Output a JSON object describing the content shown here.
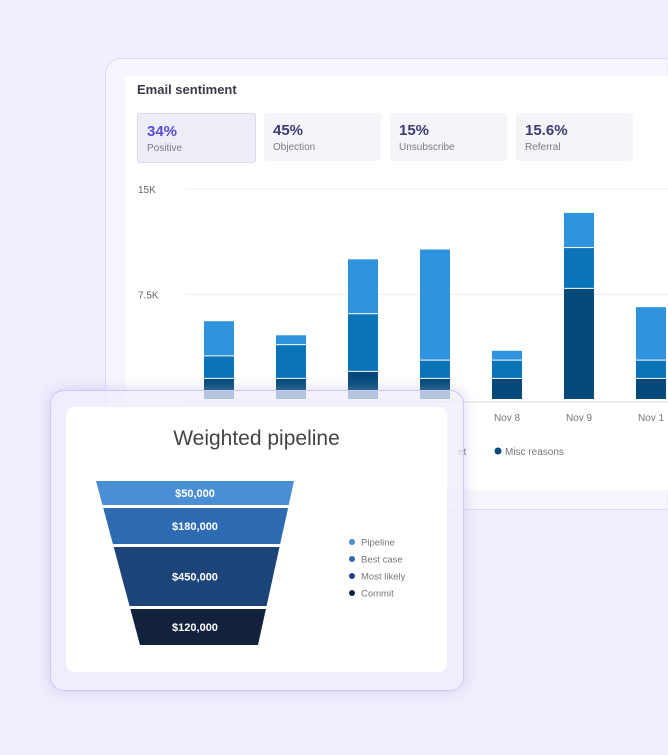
{
  "email_sentiment": {
    "title": "Email sentiment",
    "stats": [
      {
        "value": "34%",
        "label": "Positive",
        "active": true
      },
      {
        "value": "45%",
        "label": "Objection"
      },
      {
        "value": "15%",
        "label": "Unsubscribe"
      },
      {
        "value": "15.6%",
        "label": "Referral"
      }
    ]
  },
  "weighted_pipeline": {
    "title": "Weighted pipeline"
  },
  "chart_data": [
    {
      "type": "bar",
      "stacked": true,
      "yticks": [
        "15K",
        "7.5K"
      ],
      "ylim": [
        0,
        15000
      ],
      "grid": true,
      "categories": [
        "",
        "",
        "",
        "",
        "Nov 8",
        "Nov 9",
        "Nov 1"
      ],
      "series": [
        {
          "name": "Misc reasons",
          "color": "#034a7a",
          "values": [
            1500,
            1500,
            2000,
            1500,
            1500,
            7900,
            1500
          ]
        },
        {
          "name": "",
          "color": "#0a74b8",
          "values": [
            1600,
            2400,
            4100,
            1300,
            1300,
            2900,
            1300
          ]
        },
        {
          "name": "",
          "color": "#2e94dd",
          "values": [
            2500,
            700,
            3900,
            7900,
            700,
            2500,
            3800
          ]
        }
      ],
      "legend": [
        {
          "label": "et",
          "partial": true
        },
        {
          "label": "Misc reasons",
          "color": "#034a7a"
        }
      ]
    },
    {
      "type": "funnel",
      "title": "Weighted pipeline",
      "stages": [
        {
          "name": "Pipeline",
          "value": 50000,
          "label": "$50,000",
          "color": "#4a8fd6"
        },
        {
          "name": "Best case",
          "value": 180000,
          "label": "$180,000",
          "color": "#2f6bb3"
        },
        {
          "name": "Most likely",
          "value": 450000,
          "label": "$450,000",
          "color": "#1d4478"
        },
        {
          "name": "Commit",
          "value": 120000,
          "label": "$120,000",
          "color": "#12223c"
        }
      ]
    }
  ]
}
